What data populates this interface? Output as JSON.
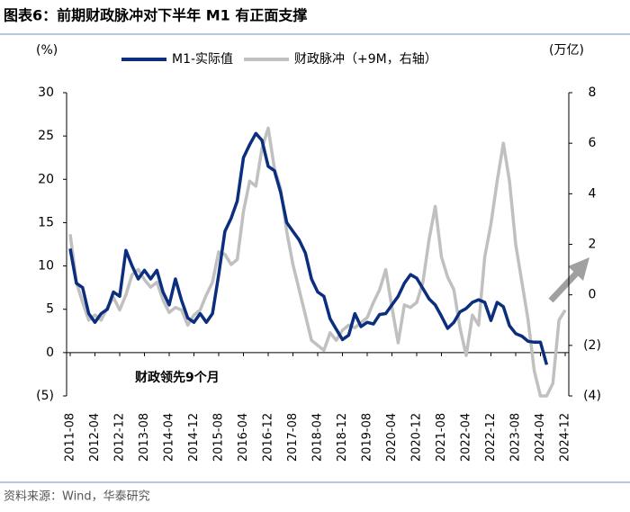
{
  "chart_data": {
    "type": "line",
    "title": "图表6：前期财政脉冲对下半年 M1 有正面支撑",
    "y_label": "(%)",
    "y2_label": "(万亿)",
    "annotation": "财政领先9个月",
    "source": "资料来源：Wind，华泰研究",
    "categories": [
      "2011-08",
      null,
      null,
      null,
      "2012-04",
      null,
      null,
      null,
      "2012-12",
      null,
      null,
      null,
      "2013-08",
      null,
      null,
      null,
      "2014-04",
      null,
      null,
      null,
      "2014-12",
      null,
      null,
      null,
      "2015-08",
      null,
      null,
      null,
      "2016-04",
      null,
      null,
      null,
      "2016-12",
      null,
      null,
      null,
      "2017-08",
      null,
      null,
      null,
      "2018-04",
      null,
      null,
      null,
      "2018-12",
      null,
      null,
      null,
      "2019-08",
      null,
      null,
      null,
      "2020-04",
      null,
      null,
      null,
      "2020-12",
      null,
      null,
      null,
      "2021-08",
      null,
      null,
      null,
      "2022-04",
      null,
      null,
      null,
      "2022-12",
      null,
      null,
      null,
      "2023-08",
      null,
      null,
      null,
      "2024-04",
      null,
      null,
      null,
      "2024-12"
    ],
    "series": [
      {
        "name": "M1-实际值",
        "color": "#0b2f7e",
        "values": [
          12,
          8,
          7.5,
          4.5,
          3.5,
          4.5,
          5,
          7,
          6.5,
          11.8,
          10,
          8.5,
          9.5,
          8.5,
          9.5,
          7,
          5.5,
          8.5,
          6,
          4,
          3.5,
          4.5,
          3.5,
          4.5,
          9,
          14,
          15.5,
          17.5,
          22.5,
          24,
          25.3,
          24.5,
          21.5,
          21,
          18.5,
          15,
          14,
          13,
          11.5,
          8.5,
          7,
          6.5,
          3.9,
          2.7,
          1.5,
          2,
          4.5,
          3,
          3.5,
          3.3,
          4.4,
          4.5,
          5.5,
          6.5,
          8,
          9,
          8.6,
          7.4,
          6.2,
          5.5,
          4.2,
          2.8,
          3.5,
          4.7,
          5.1,
          5.8,
          6.1,
          5.8,
          3.7,
          5.8,
          5.3,
          3.1,
          2.2,
          1.9,
          1.3,
          1.2,
          1.2,
          -1.4,
          null,
          null,
          null
        ]
      },
      {
        "name": "财政脉冲（+9M，右轴）",
        "color": "#c0c0c0",
        "axis": "y2",
        "values": [
          2.4,
          0.5,
          -0.3,
          -1,
          -0.8,
          -1,
          -0.5,
          -0.1,
          -0.6,
          0,
          0.8,
          1,
          0.6,
          0.3,
          0.5,
          -0.2,
          -0.7,
          -0.5,
          -0.6,
          -1.2,
          -0.8,
          -0.6,
          0,
          0.5,
          1.7,
          1.6,
          1.2,
          1.4,
          3.3,
          4.5,
          4.3,
          5.8,
          6.6,
          5,
          4.2,
          2.5,
          1.2,
          0.2,
          -0.8,
          -1.8,
          -2,
          -2.2,
          -1.5,
          -1.8,
          -1.4,
          -1.2,
          -1.3,
          -1.1,
          -0.9,
          -0.3,
          0.2,
          1,
          -0.5,
          -1.9,
          -0.4,
          -0.5,
          -0.3,
          0.5,
          2.2,
          3.5,
          1.5,
          0.7,
          0.2,
          -1.3,
          -2.4,
          -0.8,
          -1.2,
          1.5,
          2.8,
          4.5,
          6,
          4.5,
          2,
          0.5,
          -1,
          -3,
          -4,
          -4,
          -3.5,
          -1,
          -0.6
        ]
      }
    ],
    "ylim": [
      -5,
      30
    ],
    "yticks": [
      {
        "value": -5,
        "label": "(5)"
      },
      0,
      5,
      10,
      15,
      20,
      25,
      30
    ],
    "y2lim": [
      -4,
      8
    ],
    "y2ticks": [
      {
        "value": -4,
        "label": "(4)"
      },
      {
        "value": -2,
        "label": "(2)"
      },
      0,
      2,
      4,
      6,
      8
    ],
    "legend": "top"
  }
}
